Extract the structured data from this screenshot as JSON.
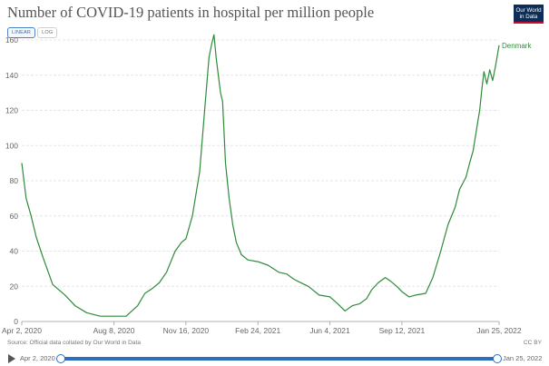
{
  "title": "Number of COVID-19 patients in hospital per million people",
  "logo": {
    "line1": "Our World",
    "line2": "in Data"
  },
  "scale_toggle": {
    "linear": "LINEAR",
    "log": "LOG",
    "selected": "linear"
  },
  "footer": {
    "source": "Source: Official data collated by Our World in Data",
    "license": "CC BY"
  },
  "timeline": {
    "start": "Apr 2, 2020",
    "end": "Jan 25, 2022",
    "selected_range": [
      0,
      1
    ]
  },
  "colors": {
    "series": "#2e8b3a",
    "grid": "#e6e6e6",
    "axis": "#b0b0b0",
    "accent": "#2d6dc2"
  },
  "chart_data": {
    "type": "line",
    "title": "Number of COVID-19 patients in hospital per million people",
    "xlabel": "",
    "ylabel": "",
    "y_scale": "linear",
    "ylim": [
      0,
      160
    ],
    "yticks": [
      0,
      20,
      40,
      60,
      80,
      100,
      120,
      140,
      160
    ],
    "xlim": [
      "2020-04-02",
      "2022-01-25"
    ],
    "xticks": [
      {
        "date": "2020-04-02",
        "label": "Apr 2, 2020"
      },
      {
        "date": "2020-08-08",
        "label": "Aug 8, 2020"
      },
      {
        "date": "2020-11-16",
        "label": "Nov 16, 2020"
      },
      {
        "date": "2021-02-24",
        "label": "Feb 24, 2021"
      },
      {
        "date": "2021-06-04",
        "label": "Jun 4, 2021"
      },
      {
        "date": "2021-09-12",
        "label": "Sep 12, 2021"
      },
      {
        "date": "2022-01-25",
        "label": "Jan 25, 2022"
      }
    ],
    "grid": true,
    "series": [
      {
        "name": "Denmark",
        "x": [
          "2020-04-02",
          "2020-04-08",
          "2020-04-15",
          "2020-04-22",
          "2020-05-01",
          "2020-05-15",
          "2020-06-01",
          "2020-06-15",
          "2020-07-01",
          "2020-07-20",
          "2020-08-08",
          "2020-08-25",
          "2020-09-10",
          "2020-09-20",
          "2020-10-01",
          "2020-10-10",
          "2020-10-20",
          "2020-11-01",
          "2020-11-10",
          "2020-11-16",
          "2020-11-25",
          "2020-12-05",
          "2020-12-12",
          "2020-12-18",
          "2020-12-22",
          "2020-12-25",
          "2020-12-28",
          "2020-12-31",
          "2021-01-03",
          "2021-01-06",
          "2021-01-10",
          "2021-01-15",
          "2021-01-20",
          "2021-01-25",
          "2021-02-01",
          "2021-02-10",
          "2021-02-24",
          "2021-03-10",
          "2021-03-25",
          "2021-04-05",
          "2021-04-15",
          "2021-04-25",
          "2021-05-05",
          "2021-05-20",
          "2021-06-04",
          "2021-06-15",
          "2021-06-25",
          "2021-07-05",
          "2021-07-15",
          "2021-07-25",
          "2021-08-01",
          "2021-08-10",
          "2021-08-20",
          "2021-08-27",
          "2021-09-05",
          "2021-09-12",
          "2021-09-22",
          "2021-10-01",
          "2021-10-15",
          "2021-10-25",
          "2021-11-05",
          "2021-11-15",
          "2021-11-25",
          "2021-12-01",
          "2021-12-10",
          "2021-12-15",
          "2021-12-20",
          "2021-12-25",
          "2021-12-29",
          "2022-01-01",
          "2022-01-04",
          "2022-01-08",
          "2022-01-12",
          "2022-01-16",
          "2022-01-20",
          "2022-01-25"
        ],
        "y": [
          90,
          70,
          60,
          48,
          37,
          21,
          15,
          9,
          5,
          3,
          3,
          3,
          9,
          16,
          19,
          22,
          28,
          40,
          45,
          47,
          60,
          85,
          120,
          150,
          158,
          163,
          150,
          140,
          130,
          125,
          90,
          70,
          55,
          45,
          38,
          35,
          34,
          32,
          28,
          27,
          24,
          22,
          20,
          15,
          14,
          10,
          6,
          9,
          10,
          13,
          18,
          22,
          25,
          23,
          20,
          17,
          14,
          15,
          16,
          25,
          40,
          55,
          65,
          75,
          82,
          90,
          97,
          110,
          120,
          132,
          142,
          135,
          143,
          137,
          145,
          157
        ]
      }
    ]
  }
}
